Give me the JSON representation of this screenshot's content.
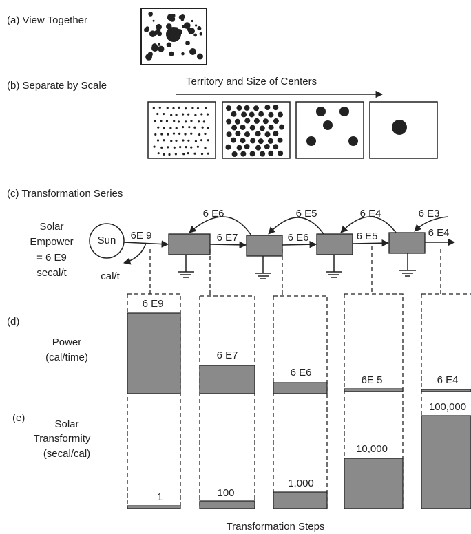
{
  "panels": {
    "a": "(a) View Together",
    "b": "(b) Separate by Scale",
    "b_arrow": "Territory and Size of Centers",
    "c": "(c) Transformation Series",
    "d": "(d)",
    "e": "(e)"
  },
  "solar_empower": [
    "Solar",
    "Empower",
    "= 6 E9",
    "secal/t"
  ],
  "sun": "Sun",
  "sun_flow": "6E 9",
  "heat": "cal/t",
  "flows": [
    "6 E6",
    "6 E7",
    "6 E5",
    "6 E6",
    "6 E4",
    "6 E5",
    "6 E3",
    "6 E4"
  ],
  "power_label": [
    "Power",
    "(cal/time)"
  ],
  "power_values": [
    "6 E9",
    "6 E7",
    "6 E6",
    "6E 5",
    "6 E4"
  ],
  "transformity_label": [
    "Solar",
    "Transformity",
    "(secal/cal)"
  ],
  "transformity_values": [
    "1",
    "100",
    "1,000",
    "10,000",
    "100,000"
  ],
  "x_axis": "Transformation Steps"
}
